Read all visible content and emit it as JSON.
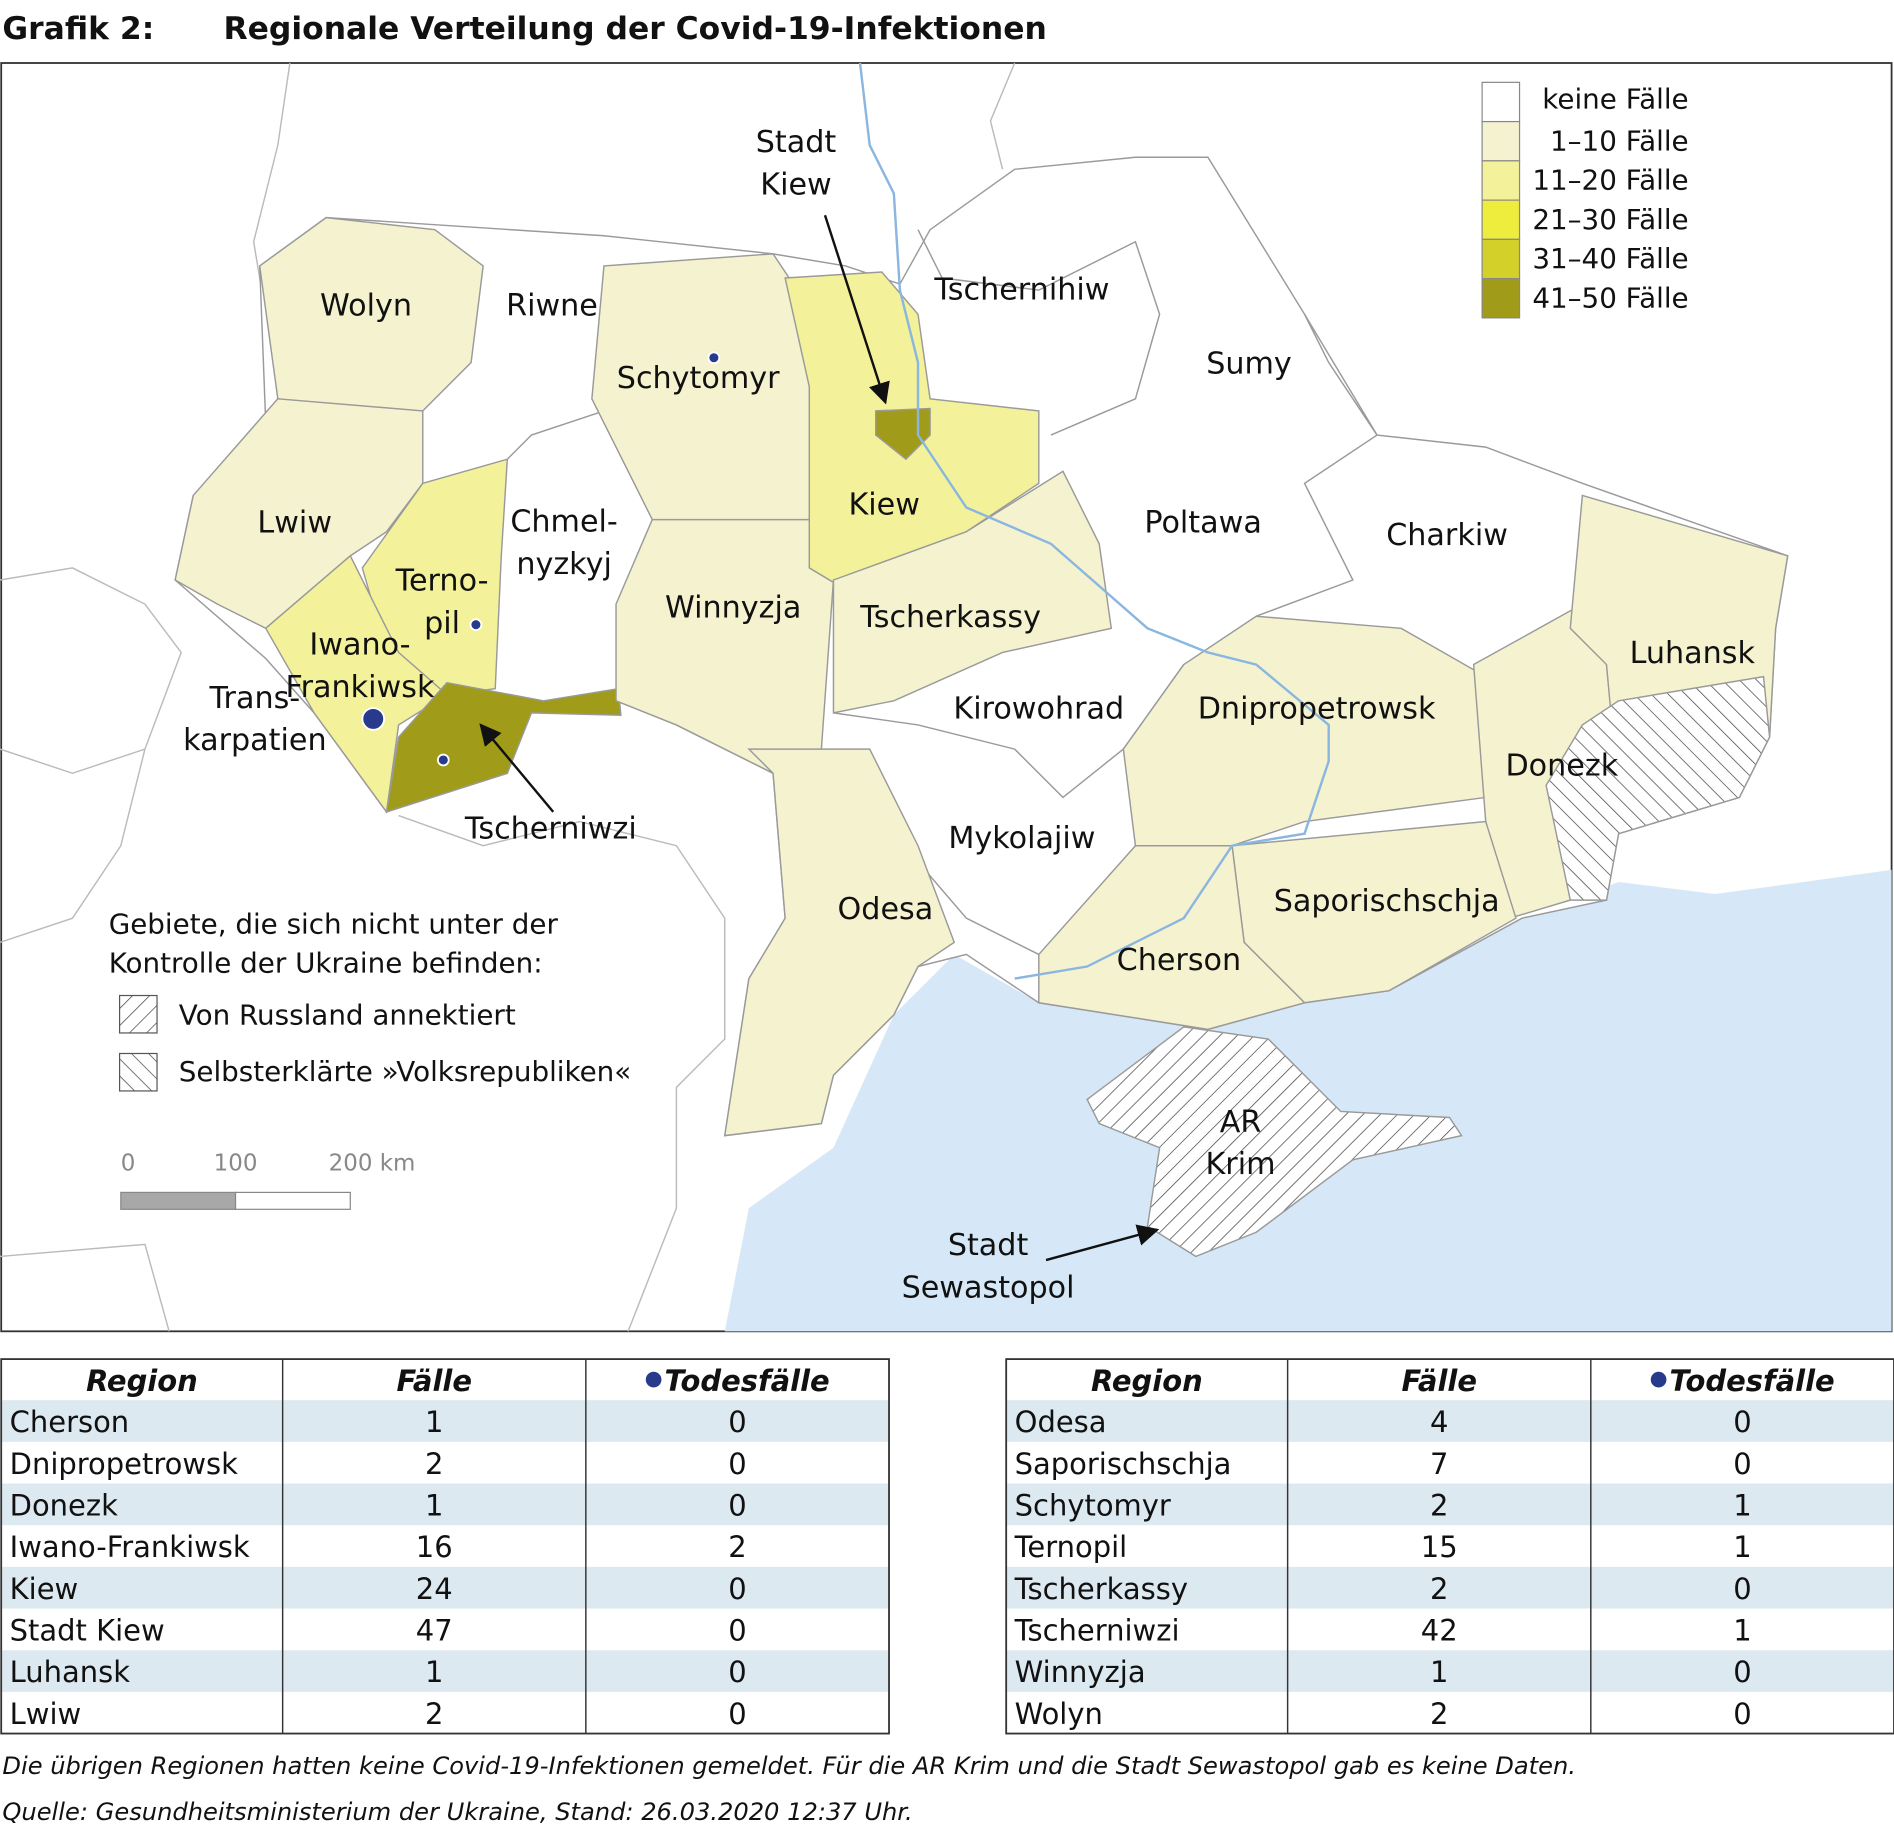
{
  "header": {
    "label": "Grafik 2:",
    "title": "Regionale Verteilung der Covid-19-Infektionen"
  },
  "map": {
    "labels": [
      {
        "lines": [
          "Wolyn"
        ]
      },
      {
        "lines": [
          "Riwne"
        ]
      },
      {
        "lines": [
          "Schytomyr"
        ]
      },
      {
        "lines": [
          "Stadt",
          "Kiew"
        ]
      },
      {
        "lines": [
          "Tschernihiw"
        ]
      },
      {
        "lines": [
          "Sumy"
        ]
      },
      {
        "lines": [
          "Lwiw"
        ]
      },
      {
        "lines": [
          "Chmel-",
          "nyzkyj"
        ]
      },
      {
        "lines": [
          "Terno-",
          "pil"
        ]
      },
      {
        "lines": [
          "Kiew"
        ]
      },
      {
        "lines": [
          "Poltawa"
        ]
      },
      {
        "lines": [
          "Charkiw"
        ]
      },
      {
        "lines": [
          "Winnyzja"
        ]
      },
      {
        "lines": [
          "Tscherkassy"
        ]
      },
      {
        "lines": [
          "Iwano-",
          "Frankiwsk"
        ]
      },
      {
        "lines": [
          "Trans-",
          "karpatien"
        ]
      },
      {
        "lines": [
          "Luhansk"
        ]
      },
      {
        "lines": [
          "Kirowohrad"
        ]
      },
      {
        "lines": [
          "Dnipropetrowsk"
        ]
      },
      {
        "lines": [
          "Donezk"
        ]
      },
      {
        "lines": [
          "Tscherniwzi"
        ]
      },
      {
        "lines": [
          "Mykolajiw"
        ]
      },
      {
        "lines": [
          "Odesa"
        ]
      },
      {
        "lines": [
          "Saporischschja"
        ]
      },
      {
        "lines": [
          "Cherson"
        ]
      },
      {
        "lines": [
          "AR",
          "Krim"
        ]
      },
      {
        "lines": [
          "Stadt",
          "Sewastopol"
        ]
      }
    ],
    "legend": {
      "classes": [
        {
          "label": "keine Fälle",
          "color": "#ffffff"
        },
        {
          "label": "1–10 Fälle",
          "color": "#f5f3cf"
        },
        {
          "label": "11–20 Fälle",
          "color": "#f3f29a"
        },
        {
          "label": "21–30 Fälle",
          "color": "#eeec3c"
        },
        {
          "label": "31–40 Fälle",
          "color": "#d3d02a"
        },
        {
          "label": "41–50 Fälle",
          "color": "#a19b1a"
        }
      ]
    },
    "territories": {
      "heading": [
        "Gebiete, die sich nicht unter der",
        "Kontrolle der Ukraine befinden:"
      ],
      "items": [
        "Von Russland annektiert",
        "Selbsterklärte »Volksrepubliken«"
      ]
    },
    "scale": [
      "0",
      "100",
      "200 km"
    ]
  },
  "tables": [
    {
      "columns": [
        "Region",
        "Fälle",
        "Todesfälle"
      ],
      "rows": [
        [
          "Cherson",
          1,
          0
        ],
        [
          "Dnipropetrowsk",
          2,
          0
        ],
        [
          "Donezk",
          1,
          0
        ],
        [
          "Iwano-Frankiwsk",
          16,
          2
        ],
        [
          "Kiew",
          24,
          0
        ],
        [
          "Stadt Kiew",
          47,
          0
        ],
        [
          "Luhansk",
          1,
          0
        ],
        [
          "Lwiw",
          2,
          0
        ]
      ]
    },
    {
      "columns": [
        "Region",
        "Fälle",
        "Todesfälle"
      ],
      "rows": [
        [
          "Odesa",
          4,
          0
        ],
        [
          "Saporischschja",
          7,
          0
        ],
        [
          "Schytomyr",
          2,
          1
        ],
        [
          "Ternopil",
          15,
          1
        ],
        [
          "Tscherkassy",
          2,
          0
        ],
        [
          "Tscherniwzi",
          42,
          1
        ],
        [
          "Winnyzja",
          1,
          0
        ],
        [
          "Wolyn",
          2,
          0
        ]
      ]
    }
  ],
  "notes": [
    "Die übrigen Regionen hatten keine Covid-19-Infektionen gemeldet. Für die AR Krim und die Stadt Sewastopol gab es keine Daten.",
    "Quelle: Gesundheitsministerium der Ukraine, Stand: 26.03.2020 12:37 Uhr."
  ]
}
